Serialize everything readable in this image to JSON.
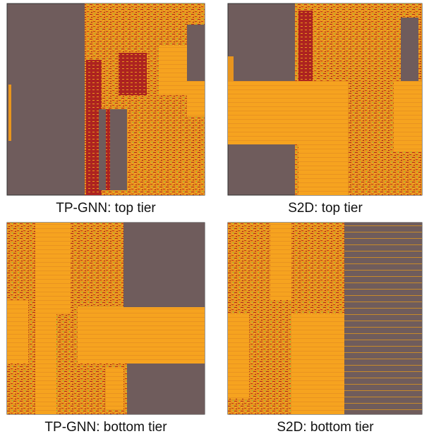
{
  "panels": [
    {
      "caption": "TP-GNN: top tier"
    },
    {
      "caption": "S2D: top tier"
    },
    {
      "caption": "TP-GNN: bottom tier"
    },
    {
      "caption": "S2D: bottom tier"
    }
  ]
}
